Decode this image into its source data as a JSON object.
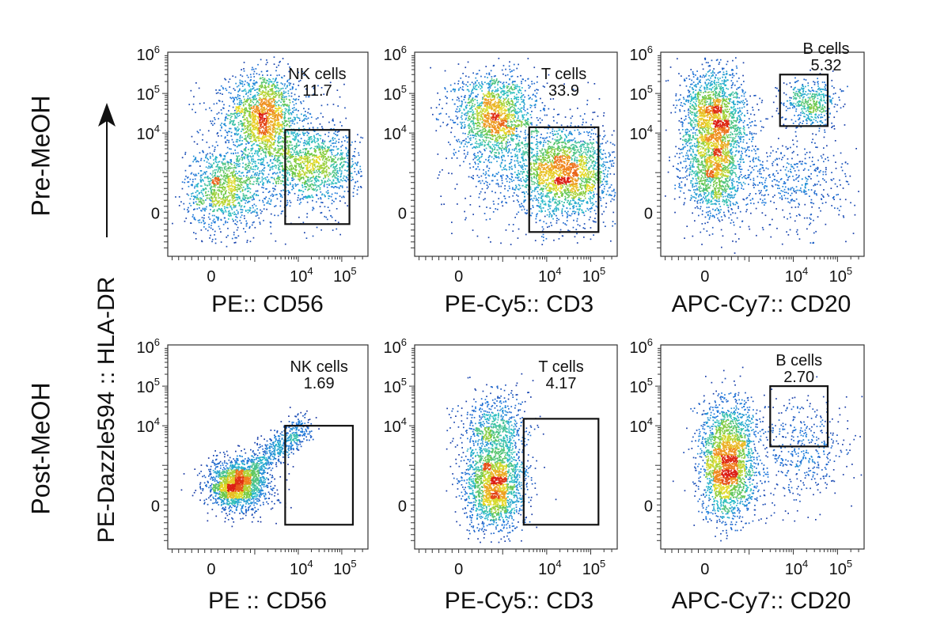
{
  "figure": {
    "row_labels": [
      "Pre-MeOH",
      "Post-MeOH"
    ],
    "y_axis_title": "PE-Dazzle594 :: HLA-DR"
  },
  "chart_data": [
    {
      "type": "scatter",
      "id": "pre-nk",
      "xlabel": "PE:: CD56",
      "ylabel": "PE-Dazzle594 :: HLA-DR",
      "x_scale": "biexponential",
      "y_scale": "biexponential",
      "x_ticks": [
        "0",
        "10^4",
        "10^5"
      ],
      "y_ticks": [
        "0",
        "10^4",
        "10^5",
        "10^6"
      ],
      "gate": {
        "name": "NK cells",
        "percent": "11.7",
        "x_range": [
          5000,
          150000
        ],
        "y_range": [
          -300,
          12000
        ]
      },
      "populations": [
        {
          "x": 1500,
          "y": 30000,
          "note": "HLA-DR high, CD56 negative"
        },
        {
          "x": 300,
          "y": 600,
          "note": "HLA-DR low, CD56 negative"
        },
        {
          "x": 20000,
          "y": 1500,
          "note": "CD56 positive"
        }
      ]
    },
    {
      "type": "scatter",
      "id": "pre-t",
      "xlabel": "PE-Cy5:: CD3",
      "ylabel": "PE-Dazzle594 :: HLA-DR",
      "x_scale": "biexponential",
      "y_scale": "biexponential",
      "x_ticks": [
        "0",
        "10^4",
        "10^5"
      ],
      "y_ticks": [
        "0",
        "10^4",
        "10^5",
        "10^6"
      ],
      "gate": {
        "name": "T cells",
        "percent": "33.9",
        "x_range": [
          4000,
          150000
        ],
        "y_range": [
          -500,
          14000
        ]
      },
      "populations": [
        {
          "x": 800,
          "y": 30000,
          "note": "HLA-DR high, CD3 negative"
        },
        {
          "x": 25000,
          "y": 1000,
          "note": "CD3 positive"
        }
      ]
    },
    {
      "type": "scatter",
      "id": "pre-b",
      "xlabel": "APC-Cy7:: CD20",
      "ylabel": "PE-Dazzle594 :: HLA-DR",
      "x_scale": "biexponential",
      "y_scale": "biexponential",
      "x_ticks": [
        "0",
        "10^4",
        "10^5"
      ],
      "y_ticks": [
        "0",
        "10^4",
        "10^5",
        "10^6"
      ],
      "gate": {
        "name": "B cells",
        "percent": "5.32",
        "x_range": [
          5000,
          60000
        ],
        "y_range": [
          15000,
          300000
        ]
      },
      "populations": [
        {
          "x": 200,
          "y": 30000,
          "note": "HLA-DR high, CD20 negative"
        },
        {
          "x": 200,
          "y": 1000,
          "note": "HLA-DR low, CD20 negative"
        },
        {
          "x": 25000,
          "y": 60000,
          "note": "CD20 positive"
        }
      ]
    },
    {
      "type": "scatter",
      "id": "post-nk",
      "xlabel": "PE :: CD56",
      "ylabel": "PE-Dazzle594 :: HLA-DR",
      "x_scale": "biexponential",
      "y_scale": "biexponential",
      "x_ticks": [
        "0",
        "10^4",
        "10^5"
      ],
      "y_ticks": [
        "0",
        "10^4",
        "10^5",
        "10^6"
      ],
      "gate": {
        "name": "NK cells",
        "percent": "1.69",
        "x_range": [
          5000,
          180000
        ],
        "y_range": [
          -500,
          10000
        ]
      },
      "populations": [
        {
          "x": 600,
          "y": 500,
          "note": "main population with diagonal streak"
        }
      ]
    },
    {
      "type": "scatter",
      "id": "post-t",
      "xlabel": "PE-Cy5:: CD3",
      "ylabel": "PE-Dazzle594 :: HLA-DR",
      "x_scale": "biexponential",
      "y_scale": "biexponential",
      "x_ticks": [
        "0",
        "10^4",
        "10^5"
      ],
      "y_ticks": [
        "0",
        "10^4",
        "10^5",
        "10^6"
      ],
      "gate": {
        "name": "T cells",
        "percent": "4.17",
        "x_range": [
          3000,
          150000
        ],
        "y_range": [
          -500,
          15000
        ]
      },
      "populations": [
        {
          "x": 800,
          "y": 500,
          "note": "CD3 negative column"
        }
      ]
    },
    {
      "type": "scatter",
      "id": "post-b",
      "xlabel": "APC-Cy7:: CD20",
      "ylabel": "PE-Dazzle594 :: HLA-DR",
      "x_scale": "biexponential",
      "y_scale": "biexponential",
      "x_ticks": [
        "0",
        "10^4",
        "10^5"
      ],
      "y_ticks": [
        "0",
        "10^4",
        "10^5",
        "10^6"
      ],
      "gate": {
        "name": "B cells",
        "percent": "2.70",
        "x_range": [
          3000,
          60000
        ],
        "y_range": [
          3000,
          100000
        ]
      },
      "populations": [
        {
          "x": 500,
          "y": 800,
          "note": "CD20 negative column"
        },
        {
          "x": 15000,
          "y": 10000,
          "note": "sparse CD20 positive"
        }
      ]
    }
  ]
}
